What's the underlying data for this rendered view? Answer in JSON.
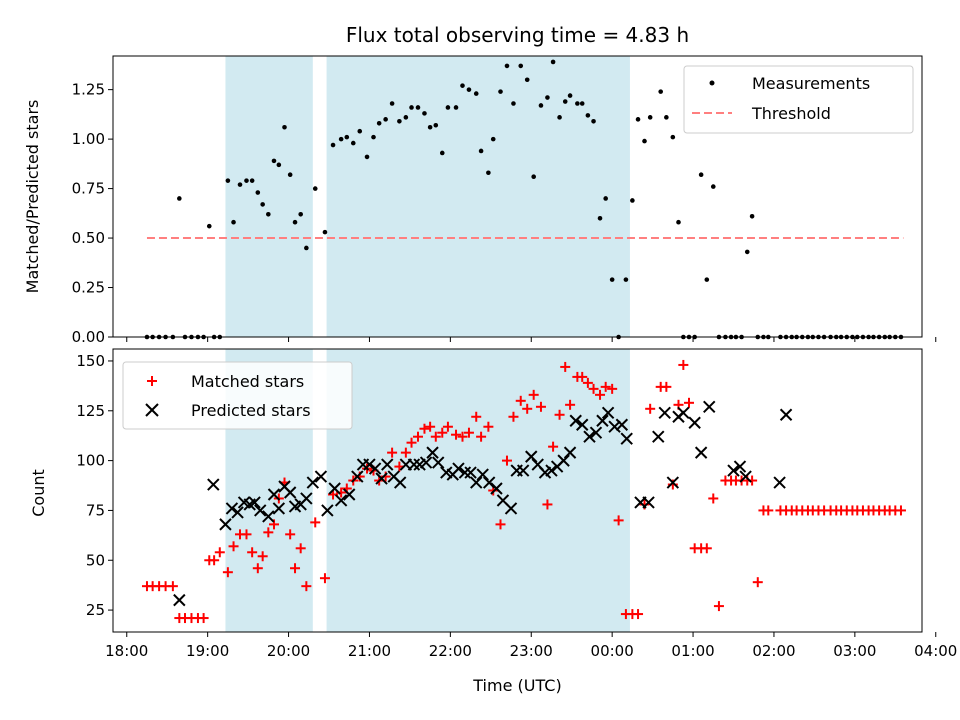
{
  "chart_data": [
    {
      "type": "scatter",
      "title": "Flux total observing time = 4.83 h",
      "xlabel": "",
      "ylabel": "Matched/Predicted stars",
      "xlim_hours": [
        17.83,
        27.83
      ],
      "ylim": [
        0,
        1.42
      ],
      "yticks": [
        0,
        0.25,
        0.5,
        0.75,
        1.0,
        1.25
      ],
      "ytick_labels": [
        "0.00",
        "0.25",
        "0.50",
        "0.75",
        "1.00",
        "1.25"
      ],
      "shaded_spans_hours": [
        [
          19.22,
          20.3
        ],
        [
          20.47,
          24.22
        ]
      ],
      "legend": [
        {
          "label": "Measurements",
          "kind": "dot",
          "color": "#000000"
        },
        {
          "label": "Threshold",
          "kind": "dash",
          "color": "#ff7f7f"
        }
      ],
      "threshold": {
        "value": 0.5,
        "x_range_hours": [
          18.25,
          27.6
        ],
        "color": "#ff7f7f"
      },
      "series": [
        {
          "name": "Measurements",
          "color": "#000000",
          "x": [
            18.25,
            18.32,
            18.4,
            18.48,
            18.57,
            18.65,
            18.72,
            18.8,
            18.88,
            18.95,
            19.02,
            19.08,
            19.15,
            19.25,
            19.32,
            19.4,
            19.48,
            19.55,
            19.62,
            19.68,
            19.75,
            19.82,
            19.88,
            19.95,
            20.02,
            20.08,
            20.15,
            20.22,
            20.33,
            20.45,
            20.55,
            20.65,
            20.72,
            20.8,
            20.88,
            20.97,
            21.05,
            21.12,
            21.2,
            21.28,
            21.37,
            21.45,
            21.52,
            21.6,
            21.68,
            21.75,
            21.82,
            21.9,
            21.97,
            22.07,
            22.15,
            22.23,
            22.32,
            22.38,
            22.47,
            22.53,
            22.62,
            22.7,
            22.78,
            22.87,
            22.95,
            23.03,
            23.12,
            23.2,
            23.27,
            23.35,
            23.42,
            23.48,
            23.57,
            23.63,
            23.7,
            23.77,
            23.85,
            23.92,
            24.0,
            24.08,
            24.17,
            24.25,
            24.32,
            24.4,
            24.47,
            24.6,
            24.67,
            24.75,
            24.82,
            24.88,
            24.95,
            25.02,
            25.1,
            25.17,
            25.25,
            25.32,
            25.4,
            25.47,
            25.53,
            25.6,
            25.67,
            25.73,
            25.8,
            25.87,
            25.93,
            26.08,
            26.15,
            26.22,
            26.28,
            26.35,
            26.42,
            26.48,
            26.55,
            26.62,
            26.7,
            26.77,
            26.83,
            26.9,
            26.97,
            27.03,
            27.1,
            27.17,
            27.23,
            27.3,
            27.37,
            27.43,
            27.5,
            27.57
          ],
          "y": [
            0,
            0,
            0,
            0,
            0,
            0.7,
            0,
            0,
            0,
            0,
            0.56,
            0,
            0,
            0.79,
            0.58,
            0.77,
            0.79,
            0.79,
            0.73,
            0.67,
            0.62,
            0.89,
            0.87,
            1.06,
            0.82,
            0.58,
            0.62,
            0.45,
            0.75,
            0.53,
            0.97,
            1.0,
            1.01,
            0.98,
            1.04,
            0.91,
            1.01,
            1.08,
            1.1,
            1.18,
            1.09,
            1.11,
            1.16,
            1.16,
            1.13,
            1.06,
            1.07,
            0.93,
            1.16,
            1.16,
            1.27,
            1.25,
            1.23,
            0.94,
            0.83,
            1.0,
            1.24,
            1.37,
            1.18,
            1.37,
            1.3,
            0.81,
            1.17,
            1.21,
            1.39,
            1.11,
            1.19,
            1.22,
            1.18,
            1.18,
            1.12,
            1.09,
            0.6,
            0.7,
            0.29,
            0,
            0.29,
            0.69,
            1.1,
            0.99,
            1.11,
            1.24,
            1.11,
            1.01,
            0.58,
            0,
            0,
            0,
            0.82,
            0.29,
            0.76,
            0,
            0,
            0,
            0,
            0,
            0.43,
            0.61,
            0,
            0,
            0,
            0,
            0,
            0,
            0,
            0,
            0,
            0,
            0,
            0,
            0,
            0,
            0,
            0,
            0,
            0,
            0,
            0,
            0,
            0,
            0,
            0,
            0,
            0
          ]
        }
      ]
    },
    {
      "type": "scatter",
      "title": "",
      "xlabel": "Time (UTC)",
      "ylabel": "Count",
      "xlim_hours": [
        17.83,
        27.83
      ],
      "ylim": [
        14,
        156
      ],
      "yticks": [
        25,
        50,
        75,
        100,
        125,
        150
      ],
      "ytick_labels": [
        "25",
        "50",
        "75",
        "100",
        "125",
        "150"
      ],
      "xticks_hours": [
        18,
        19,
        20,
        21,
        22,
        23,
        24,
        25,
        26,
        27,
        28
      ],
      "xtick_labels": [
        "18:00",
        "19:00",
        "20:00",
        "21:00",
        "22:00",
        "23:00",
        "00:00",
        "01:00",
        "02:00",
        "03:00",
        "04:00"
      ],
      "shaded_spans_hours": [
        [
          19.22,
          20.3
        ],
        [
          20.47,
          24.22
        ]
      ],
      "legend": [
        {
          "label": "Matched stars",
          "kind": "plus",
          "color": "#ff0000"
        },
        {
          "label": "Predicted stars",
          "kind": "cross",
          "color": "#000000"
        }
      ],
      "series": [
        {
          "name": "Matched stars",
          "marker": "plus",
          "color": "#ff0000",
          "x": [
            18.25,
            18.32,
            18.4,
            18.48,
            18.57,
            18.65,
            18.72,
            18.8,
            18.88,
            18.95,
            19.02,
            19.08,
            19.15,
            19.25,
            19.32,
            19.4,
            19.48,
            19.55,
            19.62,
            19.68,
            19.75,
            19.82,
            19.88,
            19.95,
            20.02,
            20.08,
            20.15,
            20.22,
            20.33,
            20.45,
            20.55,
            20.65,
            20.72,
            20.8,
            20.88,
            20.97,
            21.05,
            21.12,
            21.2,
            21.28,
            21.37,
            21.45,
            21.52,
            21.6,
            21.68,
            21.75,
            21.82,
            21.9,
            21.97,
            22.07,
            22.15,
            22.23,
            22.32,
            22.38,
            22.47,
            22.53,
            22.62,
            22.7,
            22.78,
            22.87,
            22.95,
            23.03,
            23.12,
            23.2,
            23.27,
            23.35,
            23.42,
            23.48,
            23.57,
            23.63,
            23.7,
            23.77,
            23.85,
            23.92,
            24.0,
            24.08,
            24.17,
            24.25,
            24.32,
            24.4,
            24.47,
            24.6,
            24.67,
            24.75,
            24.82,
            24.88,
            24.95,
            25.02,
            25.1,
            25.17,
            25.25,
            25.32,
            25.4,
            25.47,
            25.53,
            25.6,
            25.67,
            25.73,
            25.8,
            25.87,
            25.93,
            26.08,
            26.15,
            26.22,
            26.28,
            26.35,
            26.42,
            26.48,
            26.55,
            26.62,
            26.7,
            26.77,
            26.83,
            26.9,
            26.97,
            27.03,
            27.1,
            27.17,
            27.23,
            27.3,
            27.37,
            27.43,
            27.5,
            27.57
          ],
          "y": [
            37,
            37,
            37,
            37,
            37,
            21,
            21,
            21,
            21,
            21,
            50,
            50,
            54,
            44,
            57,
            63,
            63,
            54,
            46,
            52,
            64,
            68,
            81,
            89,
            63,
            46,
            56,
            37,
            69,
            41,
            83,
            84,
            86,
            90,
            92,
            96,
            95,
            90,
            92,
            104,
            97,
            104,
            109,
            112,
            116,
            117,
            112,
            114,
            117,
            113,
            112,
            114,
            122,
            112,
            117,
            85,
            68,
            100,
            122,
            130,
            126,
            133,
            127,
            78,
            107,
            123,
            147,
            128,
            142,
            142,
            139,
            136,
            133,
            137,
            136,
            70,
            23,
            23,
            23,
            78,
            126,
            137,
            137,
            88,
            128,
            148,
            129,
            56,
            56,
            56,
            81,
            27,
            90,
            90,
            90,
            90,
            90,
            90,
            39,
            75,
            75,
            75,
            75,
            75,
            75,
            75,
            75,
            75,
            75,
            75,
            75,
            75,
            75,
            75,
            75,
            75,
            75,
            75,
            75,
            75,
            75,
            75,
            75,
            75
          ]
        },
        {
          "name": "Predicted stars",
          "marker": "cross",
          "color": "#000000",
          "x": [
            18.65,
            19.07,
            19.22,
            19.3,
            19.37,
            19.45,
            19.52,
            19.58,
            19.65,
            19.75,
            19.82,
            19.88,
            19.95,
            20.02,
            20.08,
            20.15,
            20.22,
            20.3,
            20.4,
            20.48,
            20.57,
            20.65,
            20.75,
            20.85,
            20.92,
            21.0,
            21.07,
            21.15,
            21.22,
            21.3,
            21.38,
            21.45,
            21.55,
            21.62,
            21.7,
            21.78,
            21.85,
            21.95,
            22.03,
            22.1,
            22.18,
            22.25,
            22.32,
            22.4,
            22.48,
            22.57,
            22.65,
            22.75,
            22.82,
            22.9,
            23.0,
            23.08,
            23.17,
            23.25,
            23.32,
            23.4,
            23.48,
            23.55,
            23.63,
            23.72,
            23.8,
            23.88,
            23.95,
            24.03,
            24.12,
            24.18,
            24.35,
            24.45,
            24.57,
            24.65,
            24.75,
            24.82,
            24.88,
            25.02,
            25.1,
            25.2,
            25.5,
            25.58,
            25.65,
            26.07,
            26.15
          ],
          "y": [
            30,
            88,
            68,
            76,
            74,
            79,
            78,
            79,
            75,
            72,
            83,
            76,
            87,
            84,
            77,
            78,
            81,
            89,
            92,
            75,
            86,
            80,
            83,
            92,
            98,
            98,
            96,
            91,
            98,
            92,
            89,
            98,
            98,
            98,
            99,
            104,
            99,
            94,
            93,
            96,
            94,
            94,
            89,
            93,
            89,
            86,
            80,
            76,
            95,
            95,
            102,
            98,
            94,
            95,
            97,
            100,
            104,
            120,
            118,
            112,
            114,
            120,
            124,
            117,
            118,
            111,
            79,
            79,
            112,
            124,
            89,
            122,
            124,
            119,
            104,
            127,
            95,
            97,
            92,
            89,
            123
          ]
        }
      ]
    }
  ]
}
